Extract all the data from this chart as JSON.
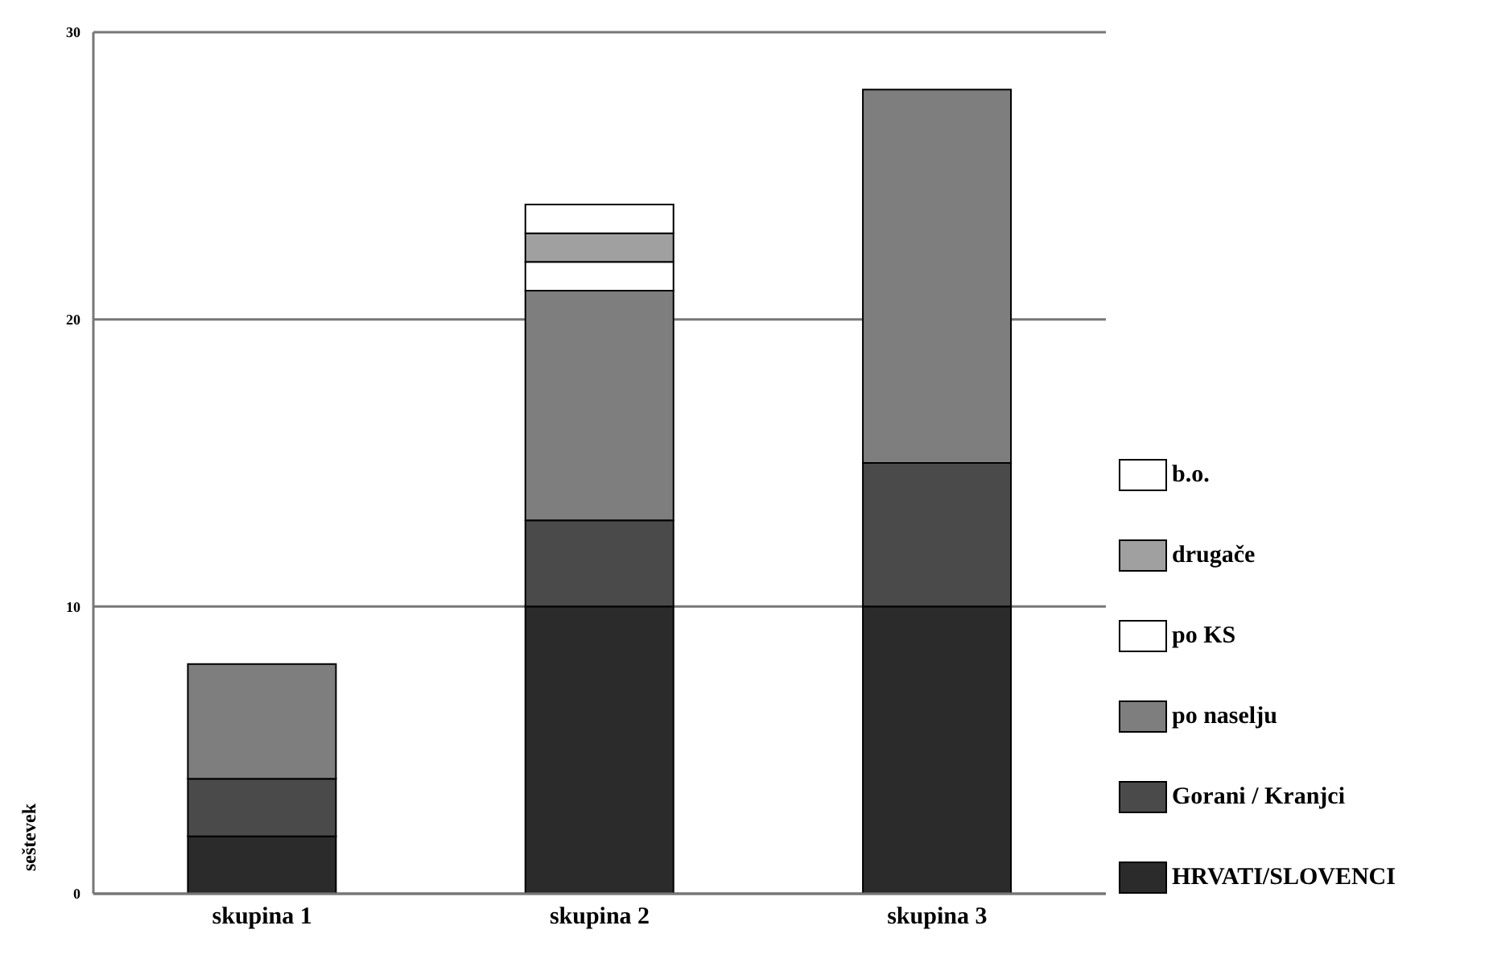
{
  "chart_data": {
    "type": "bar",
    "stacked": true,
    "ylabel": "seštevek",
    "categories": [
      "skupina 1",
      "skupina 2",
      "skupina 3"
    ],
    "series": [
      {
        "name": "HRVATI/SLOVENCI",
        "color": "#2b2b2b",
        "values": [
          2,
          10,
          10
        ]
      },
      {
        "name": "Gorani / Kranjci",
        "color": "#4a4a4a",
        "values": [
          2,
          3,
          5
        ]
      },
      {
        "name": "po naselju",
        "color": "#7e7e7e",
        "values": [
          4,
          8,
          13
        ]
      },
      {
        "name": "po KS",
        "color": "#ffffff",
        "values": [
          0,
          1,
          0
        ]
      },
      {
        "name": "drugače",
        "color": "#a0a0a0",
        "values": [
          0,
          1,
          0
        ]
      },
      {
        "name": "b.o.",
        "color": "#ffffff",
        "values": [
          0,
          1,
          0
        ]
      }
    ],
    "ylim": [
      0,
      30
    ],
    "yticks": [
      0,
      10,
      20,
      30
    ],
    "grid": "y",
    "legend": "right"
  }
}
